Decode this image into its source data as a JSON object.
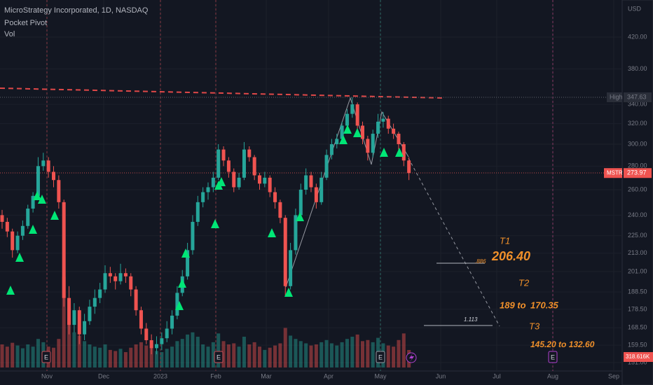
{
  "chart_data": {
    "type": "candlestick",
    "title": "MicroStrategy Incorporated, 1D, NASDAQ",
    "indicators": [
      "Pocket Pivot",
      "Vol"
    ],
    "currency": "USD",
    "symbol": "MSTR",
    "high_label": "High",
    "volume_label": "318.616K",
    "earnings_marker": "E",
    "x_labels": [
      "Nov",
      "Dec",
      "2023",
      "Feb",
      "Mar",
      "Apr",
      "May",
      "Jun",
      "Jul",
      "Aug",
      "Sep"
    ],
    "log": true,
    "ylim": [
      147.7,
      472
    ],
    "yticks": [
      {
        "value": 420,
        "label": "420.00"
      },
      {
        "value": 380,
        "label": "380.00"
      },
      {
        "value": 340,
        "label": "340.00"
      },
      {
        "value": 320,
        "label": "320.00"
      },
      {
        "value": 300,
        "label": "300.00"
      },
      {
        "value": 280,
        "label": "280.00"
      },
      {
        "value": 260,
        "label": "260.00"
      },
      {
        "value": 240,
        "label": "240.00"
      },
      {
        "value": 225,
        "label": "225.00"
      },
      {
        "value": 213,
        "label": "213.00"
      },
      {
        "value": 201,
        "label": "201.00"
      },
      {
        "value": 188.5,
        "label": "188.50"
      },
      {
        "value": 178.5,
        "label": "178.50"
      },
      {
        "value": 168.5,
        "label": "168.50"
      },
      {
        "value": 159.5,
        "label": "159.50"
      },
      {
        "value": 151,
        "label": "151.00"
      }
    ],
    "up_color": "#26a69a",
    "down_color": "#ef5350",
    "annotations": [
      "T1",
      "206.40",
      ".886",
      "T2",
      "189 to",
      "170.35",
      "1.113",
      "T3",
      "145.20 to 132.60"
    ],
    "candles": [
      [
        240,
        244,
        230,
        235,
        420
      ],
      [
        235,
        238,
        224,
        228,
        380
      ],
      [
        228,
        230,
        210,
        215,
        450
      ],
      [
        215,
        228,
        213,
        225,
        400
      ],
      [
        225,
        236,
        222,
        232,
        350
      ],
      [
        232,
        248,
        230,
        245,
        420
      ],
      [
        245,
        258,
        242,
        255,
        380
      ],
      [
        255,
        288,
        252,
        280,
        520
      ],
      [
        280,
        292,
        276,
        285,
        460
      ],
      [
        285,
        288,
        270,
        275,
        380
      ],
      [
        275,
        280,
        262,
        268,
        360
      ],
      [
        268,
        272,
        245,
        250,
        520
      ],
      [
        250,
        252,
        180,
        185,
        1650
      ],
      [
        185,
        192,
        165,
        170,
        900
      ],
      [
        170,
        182,
        166,
        178,
        640
      ],
      [
        178,
        180,
        160,
        165,
        580
      ],
      [
        165,
        176,
        162,
        172,
        480
      ],
      [
        172,
        184,
        170,
        180,
        420
      ],
      [
        180,
        190,
        176,
        185,
        380
      ],
      [
        185,
        194,
        182,
        190,
        360
      ],
      [
        190,
        205,
        188,
        200,
        420
      ],
      [
        200,
        204,
        194,
        198,
        320
      ],
      [
        198,
        200,
        190,
        195,
        300
      ],
      [
        195,
        206,
        193,
        200,
        340
      ],
      [
        200,
        203,
        194,
        198,
        280
      ],
      [
        198,
        200,
        186,
        190,
        360
      ],
      [
        190,
        192,
        175,
        178,
        420
      ],
      [
        178,
        180,
        165,
        168,
        460
      ],
      [
        168,
        171,
        160,
        162,
        400
      ],
      [
        162,
        165,
        155,
        158,
        380
      ],
      [
        158,
        164,
        155,
        160,
        300
      ],
      [
        160,
        166,
        157,
        163,
        280
      ],
      [
        163,
        172,
        161,
        168,
        340
      ],
      [
        168,
        178,
        165,
        175,
        380
      ],
      [
        175,
        192,
        173,
        188,
        480
      ],
      [
        188,
        202,
        186,
        198,
        520
      ],
      [
        198,
        220,
        196,
        215,
        600
      ],
      [
        215,
        240,
        212,
        235,
        640
      ],
      [
        235,
        255,
        232,
        250,
        560
      ],
      [
        250,
        262,
        246,
        258,
        420
      ],
      [
        258,
        266,
        252,
        262,
        380
      ],
      [
        262,
        275,
        258,
        270,
        460
      ],
      [
        270,
        300,
        268,
        295,
        620
      ],
      [
        295,
        298,
        280,
        285,
        480
      ],
      [
        285,
        288,
        270,
        275,
        420
      ],
      [
        275,
        278,
        258,
        262,
        440
      ],
      [
        262,
        274,
        260,
        270,
        380
      ],
      [
        270,
        302,
        268,
        295,
        560
      ],
      [
        295,
        298,
        284,
        288,
        420
      ],
      [
        288,
        290,
        268,
        272,
        460
      ],
      [
        272,
        274,
        260,
        265,
        380
      ],
      [
        265,
        275,
        262,
        270,
        320
      ],
      [
        270,
        272,
        254,
        258,
        360
      ],
      [
        258,
        262,
        245,
        250,
        400
      ],
      [
        250,
        252,
        234,
        238,
        440
      ],
      [
        238,
        240,
        186,
        192,
        720
      ],
      [
        192,
        220,
        190,
        215,
        580
      ],
      [
        215,
        245,
        212,
        240,
        520
      ],
      [
        240,
        265,
        238,
        260,
        480
      ],
      [
        260,
        278,
        256,
        272,
        440
      ],
      [
        272,
        275,
        258,
        262,
        400
      ],
      [
        262,
        265,
        245,
        250,
        420
      ],
      [
        250,
        275,
        248,
        270,
        460
      ],
      [
        270,
        295,
        268,
        290,
        500
      ],
      [
        290,
        305,
        286,
        300,
        440
      ],
      [
        300,
        310,
        296,
        305,
        400
      ],
      [
        305,
        322,
        300,
        318,
        460
      ],
      [
        318,
        335,
        314,
        330,
        520
      ],
      [
        330,
        347.63,
        326,
        340,
        560
      ],
      [
        340,
        342,
        314,
        318,
        600
      ],
      [
        318,
        322,
        300,
        305,
        480
      ],
      [
        305,
        308,
        285,
        292,
        500
      ],
      [
        292,
        314,
        288,
        310,
        460
      ],
      [
        310,
        330,
        306,
        322,
        540
      ],
      [
        322,
        332,
        316,
        325,
        440
      ],
      [
        325,
        328,
        310,
        315,
        400
      ],
      [
        315,
        320,
        305,
        310,
        380
      ],
      [
        310,
        312,
        295,
        300,
        500
      ],
      [
        300,
        302,
        280,
        285,
        620
      ],
      [
        285,
        288,
        268,
        273.97,
        318.616
      ]
    ]
  }
}
